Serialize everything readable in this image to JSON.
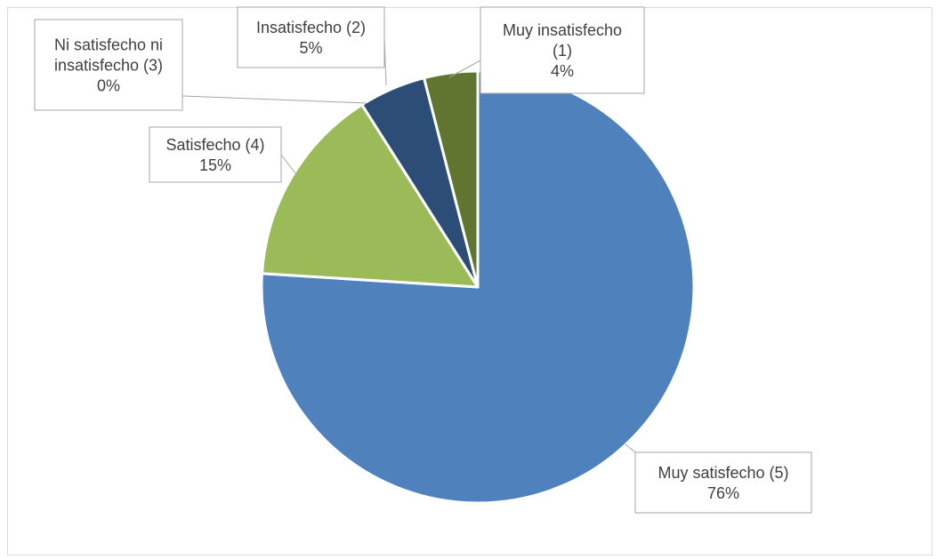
{
  "chart_data": {
    "type": "pie",
    "title": "",
    "slices": [
      {
        "label": "Muy satisfecho (5)",
        "percent_label": "76%",
        "value": 76,
        "color": "#4f81bd"
      },
      {
        "label": "Satisfecho (4)",
        "percent_label": "15%",
        "value": 15,
        "color": "#9bbb59"
      },
      {
        "label": "Ni satisfecho ni insatisfecho (3)",
        "percent_label": "0%",
        "value": 0,
        "color": "#8064a2"
      },
      {
        "label": "Insatisfecho (2)",
        "percent_label": "5%",
        "value": 5,
        "color": "#2c4d75"
      },
      {
        "label": "Muy insatisfecho (1)",
        "percent_label": "4%",
        "value": 4,
        "color": "#5f7530"
      }
    ],
    "legend": "none",
    "data_labels": "callouts with leader lines"
  }
}
